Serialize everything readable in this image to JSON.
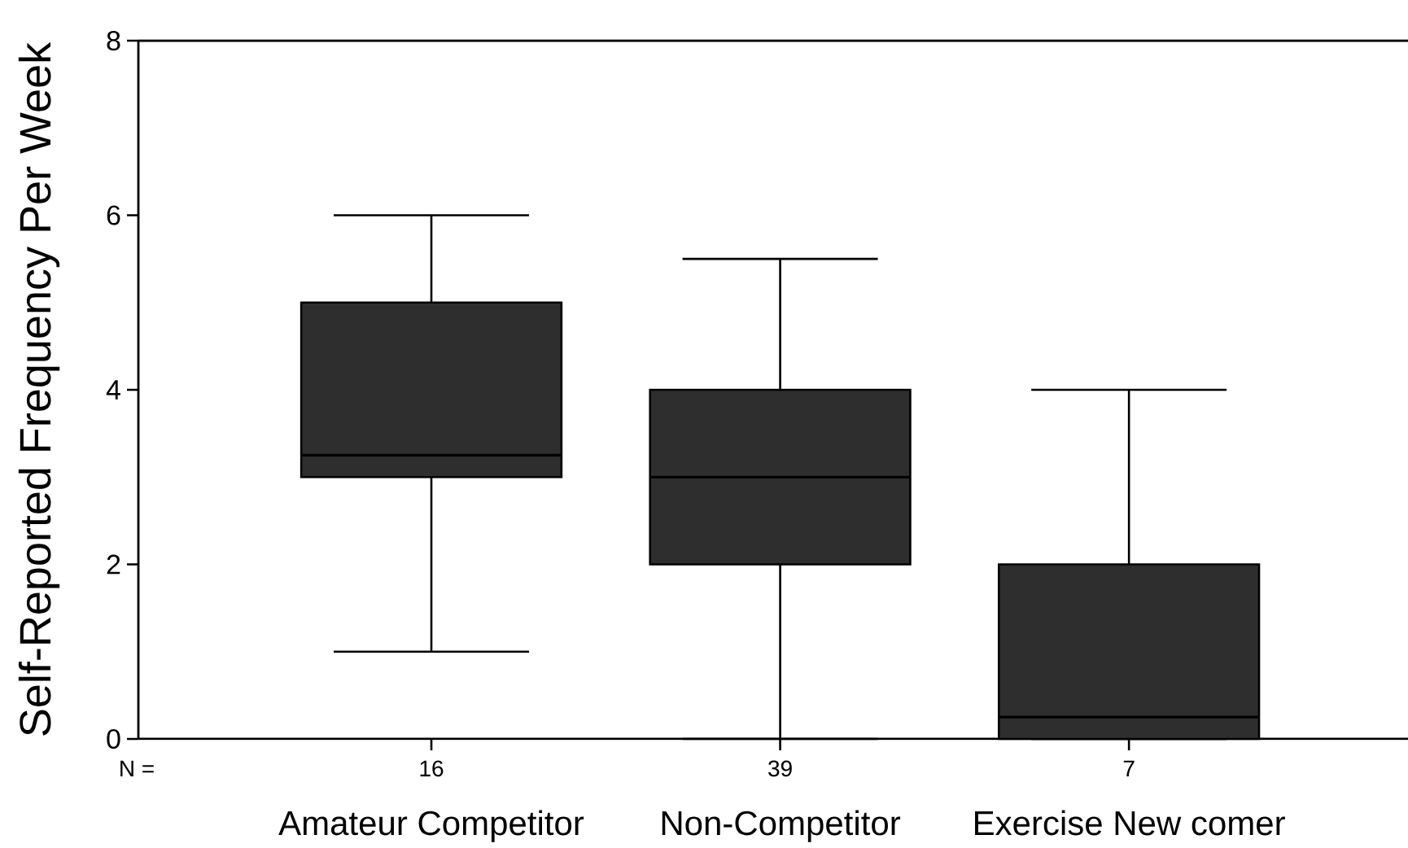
{
  "chart_data": {
    "type": "box",
    "ylabel": "Self-Reported Frequency Per Week",
    "categories": [
      "Amateur Competitor",
      "Non-Competitor",
      "Exercise New comer"
    ],
    "series": [
      {
        "color": "#2e2e2e",
        "boxes": [
          {
            "low": 1,
            "q1": 3,
            "median": 3.25,
            "q3": 5,
            "high": 6
          },
          {
            "low": 0,
            "q1": 2,
            "median": 3,
            "q3": 4,
            "high": 5.5
          },
          {
            "low": 0,
            "q1": 0,
            "median": 0.25,
            "q3": 2,
            "high": 4
          }
        ]
      }
    ],
    "ylim": [
      0,
      8
    ],
    "yticks": [
      0,
      2,
      4,
      6,
      8
    ],
    "annotations": [
      "N =",
      "16",
      "39",
      "7"
    ]
  }
}
